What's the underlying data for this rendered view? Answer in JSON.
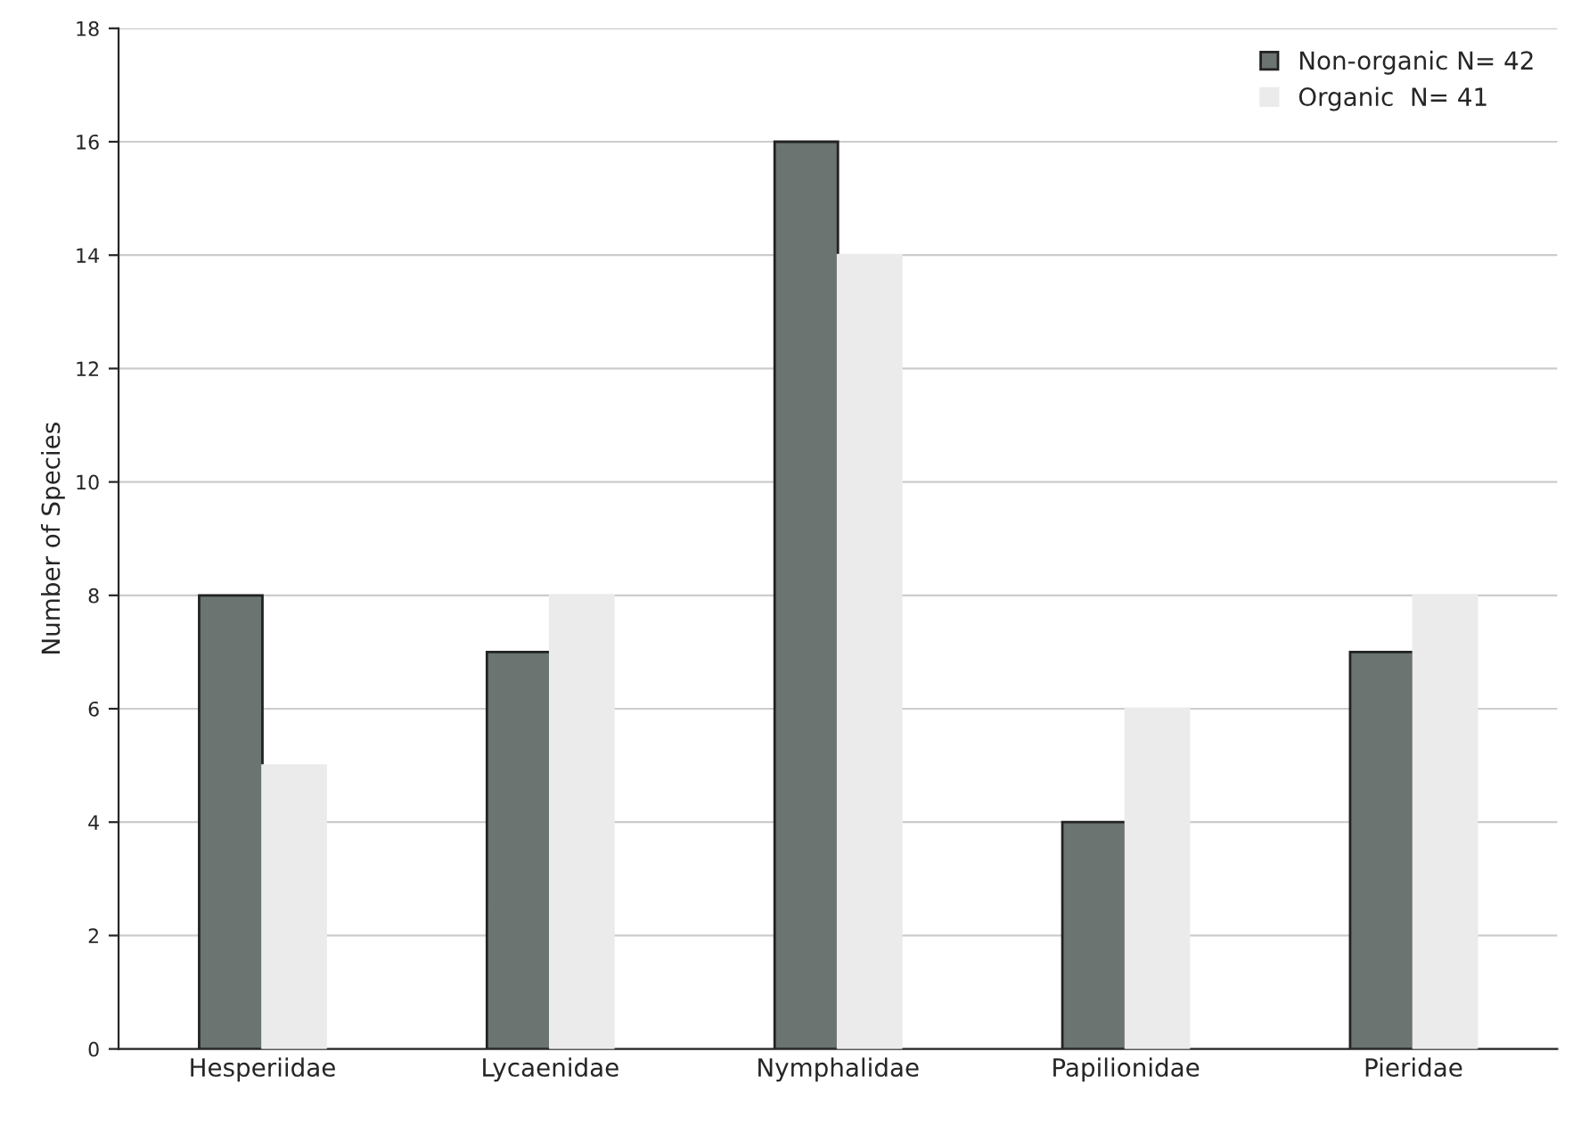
{
  "chart_data": {
    "type": "bar",
    "ylabel": "Number of Species",
    "categories": [
      "Hesperiidae",
      "Lycaenidae",
      "Nymphalidae",
      "Papilionidae",
      "Pieridae"
    ],
    "series": [
      {
        "name": "Non-organic N= 42",
        "color": "#6b7470",
        "values": [
          8,
          7,
          16,
          4,
          7
        ]
      },
      {
        "name": "Organic  N= 41",
        "color": "#ebebeb",
        "values": [
          5,
          8,
          14,
          6,
          8
        ]
      }
    ],
    "ylim": [
      0,
      18
    ],
    "yticks": [
      0,
      2,
      4,
      6,
      8,
      10,
      12,
      14,
      16,
      18
    ],
    "grid": "y",
    "legend": "top right"
  }
}
